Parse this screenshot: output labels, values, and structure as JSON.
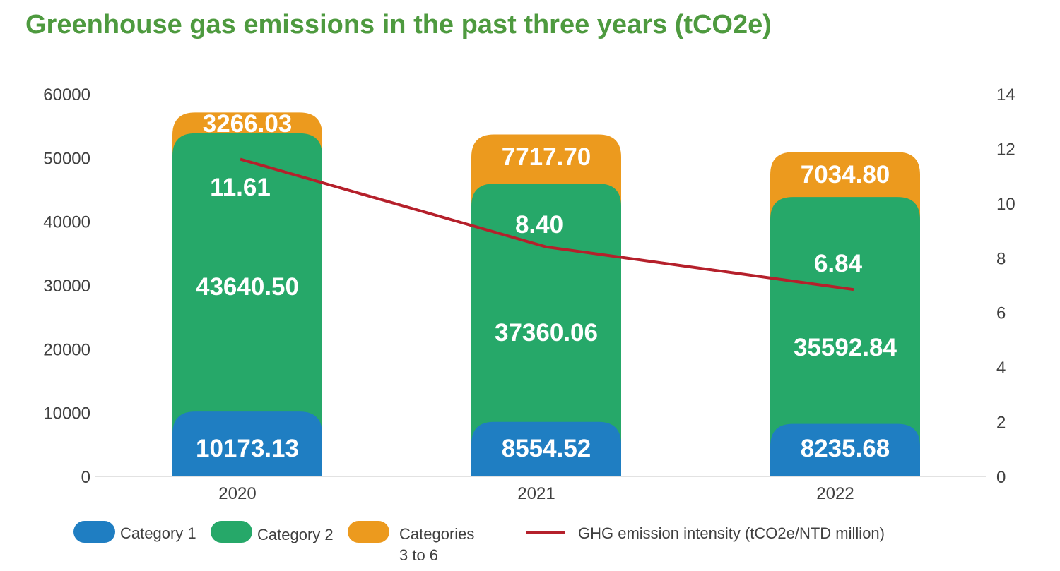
{
  "chart_data": {
    "type": "bar",
    "title": "Greenhouse gas emissions in the past three years (tCO2e)",
    "categories": [
      "2020",
      "2021",
      "2022"
    ],
    "series": [
      {
        "name": "Category 1",
        "values": [
          10173.13,
          8554.52,
          8235.68
        ],
        "color": "#1f7ec2",
        "value_labels": [
          "10173.13",
          "8554.52",
          "8235.68"
        ]
      },
      {
        "name": "Category 2",
        "values": [
          43640.5,
          37360.06,
          35592.84
        ],
        "color": "#26a869",
        "value_labels": [
          "43640.50",
          "37360.06",
          "35592.84"
        ]
      },
      {
        "name": "Categories 3 to 6",
        "values": [
          3266.03,
          7717.7,
          7034.8
        ],
        "color": "#ec9a1e",
        "value_labels": [
          "3266.03",
          "7717.70",
          "7034.80"
        ]
      }
    ],
    "line_series": {
      "name": "GHG emission intensity (tCO2e/NTD million)",
      "values": [
        11.61,
        8.4,
        6.84
      ],
      "color": "#b5202b",
      "value_labels": [
        "11.61",
        "8.40",
        "6.84"
      ],
      "axis": "right"
    },
    "ylim": [
      0,
      60000
    ],
    "yticks": [
      "0",
      "10000",
      "20000",
      "30000",
      "40000",
      "50000",
      "60000"
    ],
    "y2lim": [
      0,
      14
    ],
    "y2ticks": [
      "0",
      "2",
      "4",
      "6",
      "8",
      "10",
      "12",
      "14"
    ],
    "stacked": true,
    "grid": false,
    "legend_position": "bottom"
  },
  "legend": {
    "cat1": "Category 1",
    "cat2": "Category 2",
    "cat36_line1": "Categories",
    "cat36_line2": "3 to 6",
    "line": "GHG emission intensity (tCO2e/NTD million)"
  }
}
